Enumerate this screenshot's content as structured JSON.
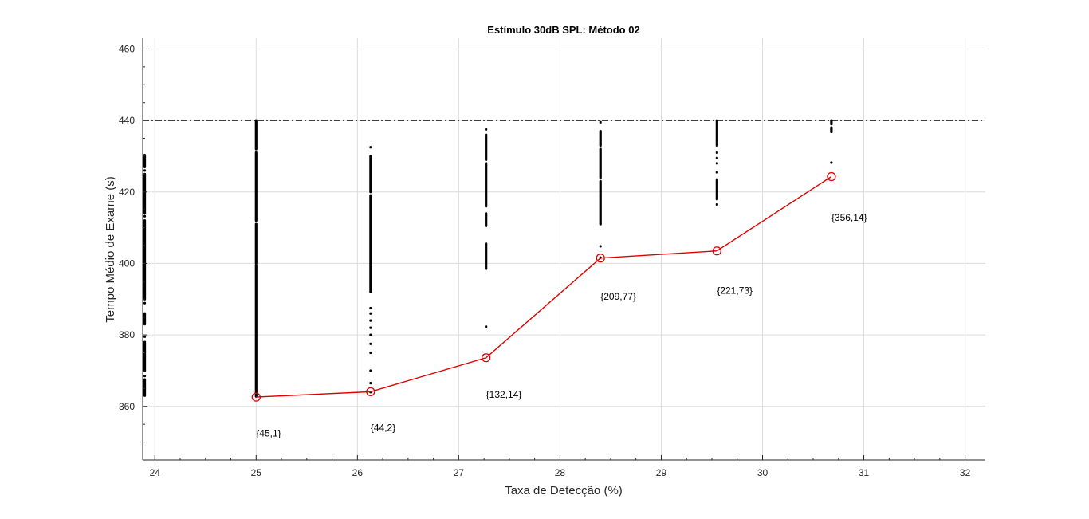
{
  "chart_data": {
    "type": "scatter",
    "title": "Estímulo 30dB SPL: Método 02",
    "xlabel": "Taxa de Detecção (%)",
    "ylabel": "Tempo Médio de Exame (s)",
    "xlim": [
      23.88,
      32.2
    ],
    "ylim": [
      345,
      463
    ],
    "xticks": [
      24,
      25,
      26,
      27,
      28,
      29,
      30,
      31,
      32
    ],
    "yticks": [
      360,
      380,
      400,
      420,
      440,
      460
    ],
    "grid": true,
    "reference_line": {
      "y": 440,
      "style": "dash-dot",
      "color": "#000000"
    },
    "colors": {
      "scatter": "#000000",
      "line": "#e00000",
      "grid": "#dcdcdc",
      "axis": "#262626"
    },
    "scatter_series": [
      {
        "x": 23.9,
        "segments": [
          [
            363,
            367.5
          ],
          [
            370,
            378
          ],
          [
            383,
            386
          ],
          [
            390,
            412
          ],
          [
            414,
            425
          ],
          [
            427,
            430.3
          ]
        ],
        "singles": [
          368.5,
          379.5,
          388.9,
          413.2,
          426.0
        ]
      },
      {
        "x": 25.0,
        "segments": [
          [
            362.8,
            399.5
          ],
          [
            400,
            411
          ],
          [
            412,
            431
          ],
          [
            432,
            440
          ]
        ],
        "singles": []
      },
      {
        "x": 26.13,
        "segments": [
          [
            392,
            419
          ],
          [
            420,
            430
          ]
        ],
        "singles": [
          364,
          366.5,
          370,
          375,
          377.5,
          380,
          382,
          384,
          386,
          387.5,
          432.5
        ]
      },
      {
        "x": 27.27,
        "segments": [
          [
            398.5,
            405.5
          ],
          [
            410.5,
            414
          ],
          [
            416,
            428
          ],
          [
            429,
            436
          ]
        ],
        "singles": [
          382.3,
          437.5
        ]
      },
      {
        "x": 28.4,
        "segments": [
          [
            411,
            423
          ],
          [
            424,
            432
          ],
          [
            433,
            437
          ]
        ],
        "singles": [
          404.8,
          401.6,
          439.5
        ]
      },
      {
        "x": 29.55,
        "segments": [
          [
            418,
            423.5
          ],
          [
            433,
            440
          ]
        ],
        "singles": [
          416.5,
          425.5,
          428,
          429.5,
          431
        ]
      },
      {
        "x": 30.68,
        "segments": [
          [
            436.8,
            438
          ],
          [
            439,
            440
          ]
        ],
        "singles": [
          428.2
        ]
      }
    ],
    "series": [
      {
        "x": [
          25.0,
          26.13,
          27.27,
          28.4,
          29.55,
          30.68
        ],
        "y": [
          362.6,
          364.1,
          373.6,
          401.5,
          403.5,
          424.3
        ]
      }
    ],
    "annotations": [
      {
        "text": "{45,1}",
        "x": 25.0,
        "y": 352.5
      },
      {
        "text": "{44,2}",
        "x": 26.13,
        "y": 354.0
      },
      {
        "text": "{132,14}",
        "x": 27.27,
        "y": 363.3
      },
      {
        "text": "{209,77}",
        "x": 28.4,
        "y": 390.7
      },
      {
        "text": "{221,73}",
        "x": 29.55,
        "y": 392.4
      },
      {
        "text": "{356,14}",
        "x": 30.68,
        "y": 412.8
      }
    ]
  }
}
